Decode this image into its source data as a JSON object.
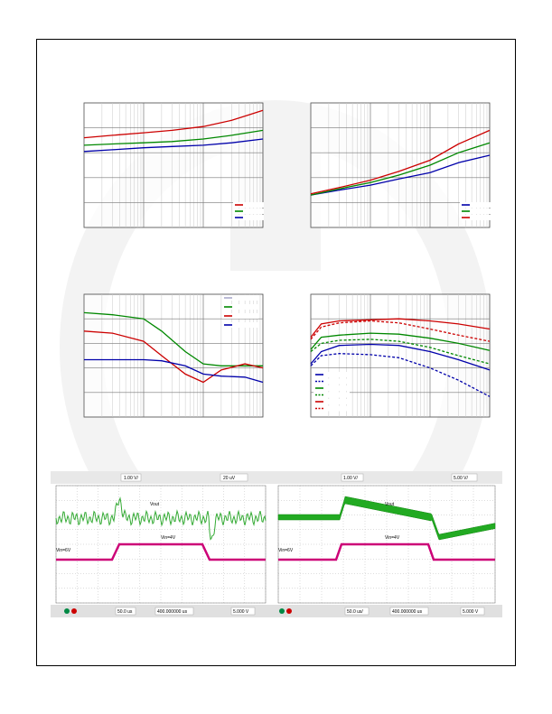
{
  "page": {
    "watermark_color": "#f2f2f2",
    "frame_color": "#000000"
  },
  "chart_data": [
    {
      "type": "line",
      "panel": "top-left",
      "grid": true,
      "xscale": "log",
      "xlim": [
        1,
        1000
      ],
      "ylim": [
        0,
        5
      ],
      "legend": "bottom-right",
      "series": [
        {
          "color": "#cc0000",
          "x": [
            1,
            3,
            10,
            30,
            100,
            300,
            1000
          ],
          "y": [
            3.6,
            3.7,
            3.8,
            3.9,
            4.05,
            4.3,
            4.7
          ]
        },
        {
          "color": "#008800",
          "x": [
            1,
            3,
            10,
            30,
            100,
            300,
            1000
          ],
          "y": [
            3.3,
            3.35,
            3.4,
            3.45,
            3.55,
            3.7,
            3.9
          ]
        },
        {
          "color": "#0000aa",
          "x": [
            1,
            3,
            10,
            30,
            100,
            300,
            1000
          ],
          "y": [
            3.05,
            3.12,
            3.2,
            3.25,
            3.3,
            3.4,
            3.55
          ]
        }
      ]
    },
    {
      "type": "line",
      "panel": "top-right",
      "grid": true,
      "xscale": "log",
      "xlim": [
        1,
        1000
      ],
      "ylim": [
        0,
        5
      ],
      "legend": "bottom-right",
      "series": [
        {
          "color": "#0000aa",
          "x": [
            1,
            3,
            10,
            30,
            100,
            300,
            1000
          ],
          "y": [
            1.3,
            1.5,
            1.7,
            1.95,
            2.2,
            2.6,
            2.9
          ]
        },
        {
          "color": "#008800",
          "x": [
            1,
            3,
            10,
            30,
            100,
            300,
            1000
          ],
          "y": [
            1.3,
            1.55,
            1.8,
            2.1,
            2.5,
            3.0,
            3.4
          ]
        },
        {
          "color": "#cc0000",
          "x": [
            1,
            3,
            10,
            30,
            100,
            300,
            1000
          ],
          "y": [
            1.35,
            1.6,
            1.9,
            2.25,
            2.7,
            3.35,
            3.9
          ]
        }
      ]
    },
    {
      "type": "line",
      "panel": "middle-left",
      "grid": true,
      "xscale": "log",
      "xlim": [
        0.1,
        100
      ],
      "ylim": [
        0,
        6
      ],
      "legend": "top-right",
      "series": [
        {
          "color": "#aaaacc",
          "x": [],
          "y": []
        },
        {
          "color": "#008800",
          "x": [
            0.1,
            0.3,
            1,
            2,
            5,
            10,
            20,
            50,
            100
          ],
          "y": [
            5.1,
            5.0,
            4.8,
            4.2,
            3.2,
            2.6,
            2.5,
            2.5,
            2.5
          ]
        },
        {
          "color": "#cc0000",
          "x": [
            0.1,
            0.3,
            1,
            2,
            5,
            10,
            20,
            50,
            100
          ],
          "y": [
            4.2,
            4.1,
            3.7,
            3.0,
            2.1,
            1.7,
            2.3,
            2.6,
            2.4
          ]
        },
        {
          "color": "#0000aa",
          "x": [
            0.1,
            0.3,
            1,
            2,
            5,
            10,
            20,
            50,
            100
          ],
          "y": [
            2.8,
            2.8,
            2.8,
            2.75,
            2.5,
            2.1,
            2.0,
            1.95,
            1.7
          ]
        }
      ]
    },
    {
      "type": "line",
      "panel": "middle-right",
      "grid": true,
      "xscale": "log",
      "xlim": [
        0.1,
        100
      ],
      "ylim": [
        0,
        6
      ],
      "legend": "bottom-left",
      "series": [
        {
          "color": "#0000aa",
          "dash": false,
          "x": [
            0.1,
            0.15,
            0.3,
            1,
            3,
            10,
            30,
            100
          ],
          "y": [
            2.6,
            3.2,
            3.5,
            3.55,
            3.5,
            3.2,
            2.8,
            2.3
          ]
        },
        {
          "color": "#0000aa",
          "dash": true,
          "x": [
            0.1,
            0.15,
            0.3,
            1,
            3,
            10,
            30,
            100
          ],
          "y": [
            2.5,
            3.0,
            3.1,
            3.05,
            2.9,
            2.4,
            1.8,
            1.0
          ]
        },
        {
          "color": "#008800",
          "dash": false,
          "x": [
            0.1,
            0.15,
            0.3,
            1,
            3,
            10,
            30,
            100
          ],
          "y": [
            3.3,
            3.9,
            4.0,
            4.1,
            4.05,
            3.85,
            3.6,
            3.25
          ]
        },
        {
          "color": "#008800",
          "dash": true,
          "x": [
            0.1,
            0.15,
            0.3,
            1,
            3,
            10,
            30,
            100
          ],
          "y": [
            3.2,
            3.6,
            3.75,
            3.8,
            3.7,
            3.4,
            3.0,
            2.6
          ]
        },
        {
          "color": "#cc0000",
          "dash": false,
          "x": [
            0.1,
            0.15,
            0.3,
            1,
            3,
            10,
            30,
            100
          ],
          "y": [
            3.9,
            4.55,
            4.7,
            4.75,
            4.8,
            4.7,
            4.55,
            4.3
          ]
        },
        {
          "color": "#cc0000",
          "dash": true,
          "x": [
            0.1,
            0.15,
            0.3,
            1,
            3,
            10,
            30,
            100
          ],
          "y": [
            3.8,
            4.4,
            4.6,
            4.7,
            4.6,
            4.3,
            4.0,
            3.7
          ]
        }
      ]
    }
  ],
  "scopes": [
    {
      "panel": "bottom-left",
      "trace1_label": "Vout",
      "trace2_label": "Vin=4V",
      "trace2_left_label": "Vin=6V",
      "status_timebase": "50.0 us",
      "status_position": "400.000000 us",
      "status_level": "5.000 V",
      "header_value_1": "1.00 V/",
      "header_value_2": "20 uV",
      "trace_colors": {
        "vout": "#33aa33",
        "vin": "#cc0077"
      }
    },
    {
      "panel": "bottom-right",
      "trace1_label": "Vout",
      "trace2_label": "Vin=4V",
      "trace2_left_label": "Vin=6V",
      "status_timebase": "50.0 us/",
      "status_position": "400.000000 us",
      "status_level": "5.000 V",
      "header_value_1": "1.00 V/",
      "header_value_2": "5.00 V/",
      "trace_colors": {
        "vout": "#22aa22",
        "vin": "#cc0077"
      }
    }
  ]
}
